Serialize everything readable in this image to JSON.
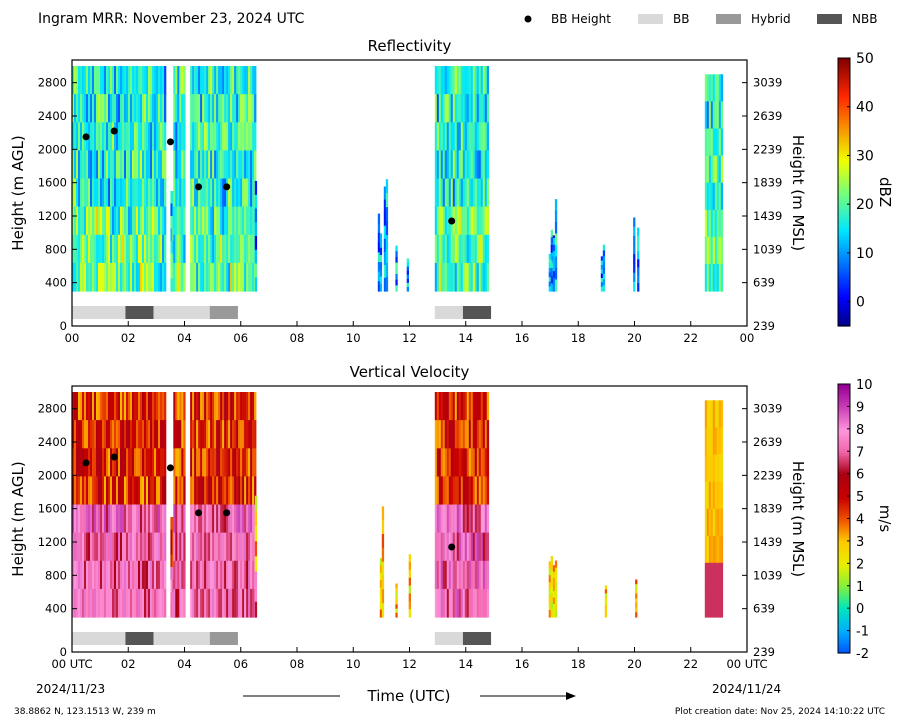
{
  "header": {
    "title": "Ingram MRR:  November 23, 2024 UTC",
    "legend": [
      {
        "label": "BB Height",
        "kind": "dot",
        "color": "#000000"
      },
      {
        "label": "BB",
        "kind": "swatch",
        "color": "#d9d9d9"
      },
      {
        "label": "Hybrid",
        "kind": "swatch",
        "color": "#999999"
      },
      {
        "label": "NBB",
        "kind": "swatch",
        "color": "#555555"
      }
    ]
  },
  "footer": {
    "location": "38.8862 N, 123.1513 W, 239 m",
    "creation": "Plot creation date: Nov 25, 2024 14:10:22 UTC",
    "date_start": "2024/11/23",
    "date_end": "2024/11/24",
    "xlabel": "Time (UTC)"
  },
  "chart_data": [
    {
      "type": "heatmap",
      "title": "Reflectivity",
      "ylabel": "Height (m AGL)",
      "y2label": "Height (m MSL)",
      "xlim": [
        0,
        24
      ],
      "ylim": [
        0,
        3000
      ],
      "x_ticks": [
        "00",
        "02",
        "04",
        "06",
        "08",
        "10",
        "12",
        "14",
        "16",
        "18",
        "20",
        "22",
        "00"
      ],
      "y_ticks": [
        0,
        400,
        800,
        1200,
        1600,
        2000,
        2400,
        2800
      ],
      "y2_ticks": [
        "239",
        "639",
        "1039",
        "1439",
        "1839",
        "2239",
        "2639",
        "3039"
      ],
      "colorbar": {
        "label": "dBZ",
        "min": -5,
        "max": 50,
        "ticks": [
          0,
          10,
          20,
          30,
          40,
          50
        ],
        "colormap": "jet"
      },
      "bb_height": [
        {
          "t": 0.5,
          "h": 2150
        },
        {
          "t": 1.5,
          "h": 2220
        },
        {
          "t": 3.5,
          "h": 2090
        },
        {
          "t": 4.5,
          "h": 1550
        },
        {
          "t": 5.5,
          "h": 1550
        },
        {
          "t": 13.5,
          "h": 1140
        }
      ],
      "bb_class": [
        {
          "start": 0.0,
          "end": 1.9,
          "class": "BB"
        },
        {
          "start": 1.9,
          "end": 2.9,
          "class": "NBB"
        },
        {
          "start": 2.9,
          "end": 4.9,
          "class": "BB"
        },
        {
          "start": 4.9,
          "end": 5.9,
          "class": "Hybrid"
        },
        {
          "start": 12.9,
          "end": 13.9,
          "class": "BB"
        },
        {
          "start": 13.9,
          "end": 14.9,
          "class": "NBB"
        }
      ]
    },
    {
      "type": "heatmap",
      "title": "Vertical Velocity",
      "ylabel": "Height (m AGL)",
      "y2label": "Height (m MSL)",
      "xlim": [
        0,
        24
      ],
      "ylim": [
        0,
        3000
      ],
      "x_ticks": [
        "00 UTC",
        "02",
        "04",
        "06",
        "08",
        "10",
        "12",
        "14",
        "16",
        "18",
        "20",
        "22",
        "00 UTC"
      ],
      "y_ticks": [
        0,
        400,
        800,
        1200,
        1600,
        2000,
        2400,
        2800
      ],
      "y2_ticks": [
        "239",
        "639",
        "1039",
        "1439",
        "1839",
        "2239",
        "2639",
        "3039"
      ],
      "colorbar": {
        "label": "m/s",
        "min": -2,
        "max": 10,
        "ticks": [
          -2,
          -1,
          0,
          1,
          2,
          3,
          4,
          5,
          6,
          7,
          8,
          9,
          10
        ],
        "colormap": "velocity"
      },
      "bb_height": [
        {
          "t": 0.5,
          "h": 2150
        },
        {
          "t": 1.5,
          "h": 2220
        },
        {
          "t": 3.5,
          "h": 2090
        },
        {
          "t": 4.5,
          "h": 1550
        },
        {
          "t": 5.5,
          "h": 1550
        },
        {
          "t": 13.5,
          "h": 1140
        }
      ],
      "bb_class": [
        {
          "start": 0.0,
          "end": 1.9,
          "class": "BB"
        },
        {
          "start": 1.9,
          "end": 2.9,
          "class": "NBB"
        },
        {
          "start": 2.9,
          "end": 4.9,
          "class": "BB"
        },
        {
          "start": 4.9,
          "end": 5.9,
          "class": "Hybrid"
        },
        {
          "start": 12.9,
          "end": 13.9,
          "class": "BB"
        },
        {
          "start": 13.9,
          "end": 14.9,
          "class": "NBB"
        }
      ]
    }
  ],
  "precip_segments": [
    {
      "start": 0.0,
      "end": 3.3,
      "top": 3000,
      "kind": "full"
    },
    {
      "start": 3.5,
      "end": 3.65,
      "top": 1500,
      "kind": "full"
    },
    {
      "start": 3.6,
      "end": 4.0,
      "top": 3000,
      "kind": "full"
    },
    {
      "start": 4.2,
      "end": 6.5,
      "top": 3000,
      "kind": "full"
    },
    {
      "start": 6.5,
      "end": 6.55,
      "top": 2700,
      "kind": "edge"
    },
    {
      "start": 10.8,
      "end": 11.2,
      "top": 1650,
      "kind": "sparse"
    },
    {
      "start": 11.5,
      "end": 11.6,
      "top": 1000,
      "kind": "sparse"
    },
    {
      "start": 11.9,
      "end": 12.0,
      "top": 1100,
      "kind": "sparse"
    },
    {
      "start": 12.9,
      "end": 14.8,
      "top": 3000,
      "kind": "full"
    },
    {
      "start": 16.95,
      "end": 17.15,
      "top": 1200,
      "kind": "sparse"
    },
    {
      "start": 17.1,
      "end": 17.2,
      "top": 1600,
      "kind": "sparse"
    },
    {
      "start": 18.8,
      "end": 18.95,
      "top": 900,
      "kind": "sparse"
    },
    {
      "start": 19.95,
      "end": 20.2,
      "top": 1250,
      "kind": "sparse"
    },
    {
      "start": 22.5,
      "end": 23.1,
      "top": 2900,
      "kind": "full"
    }
  ]
}
